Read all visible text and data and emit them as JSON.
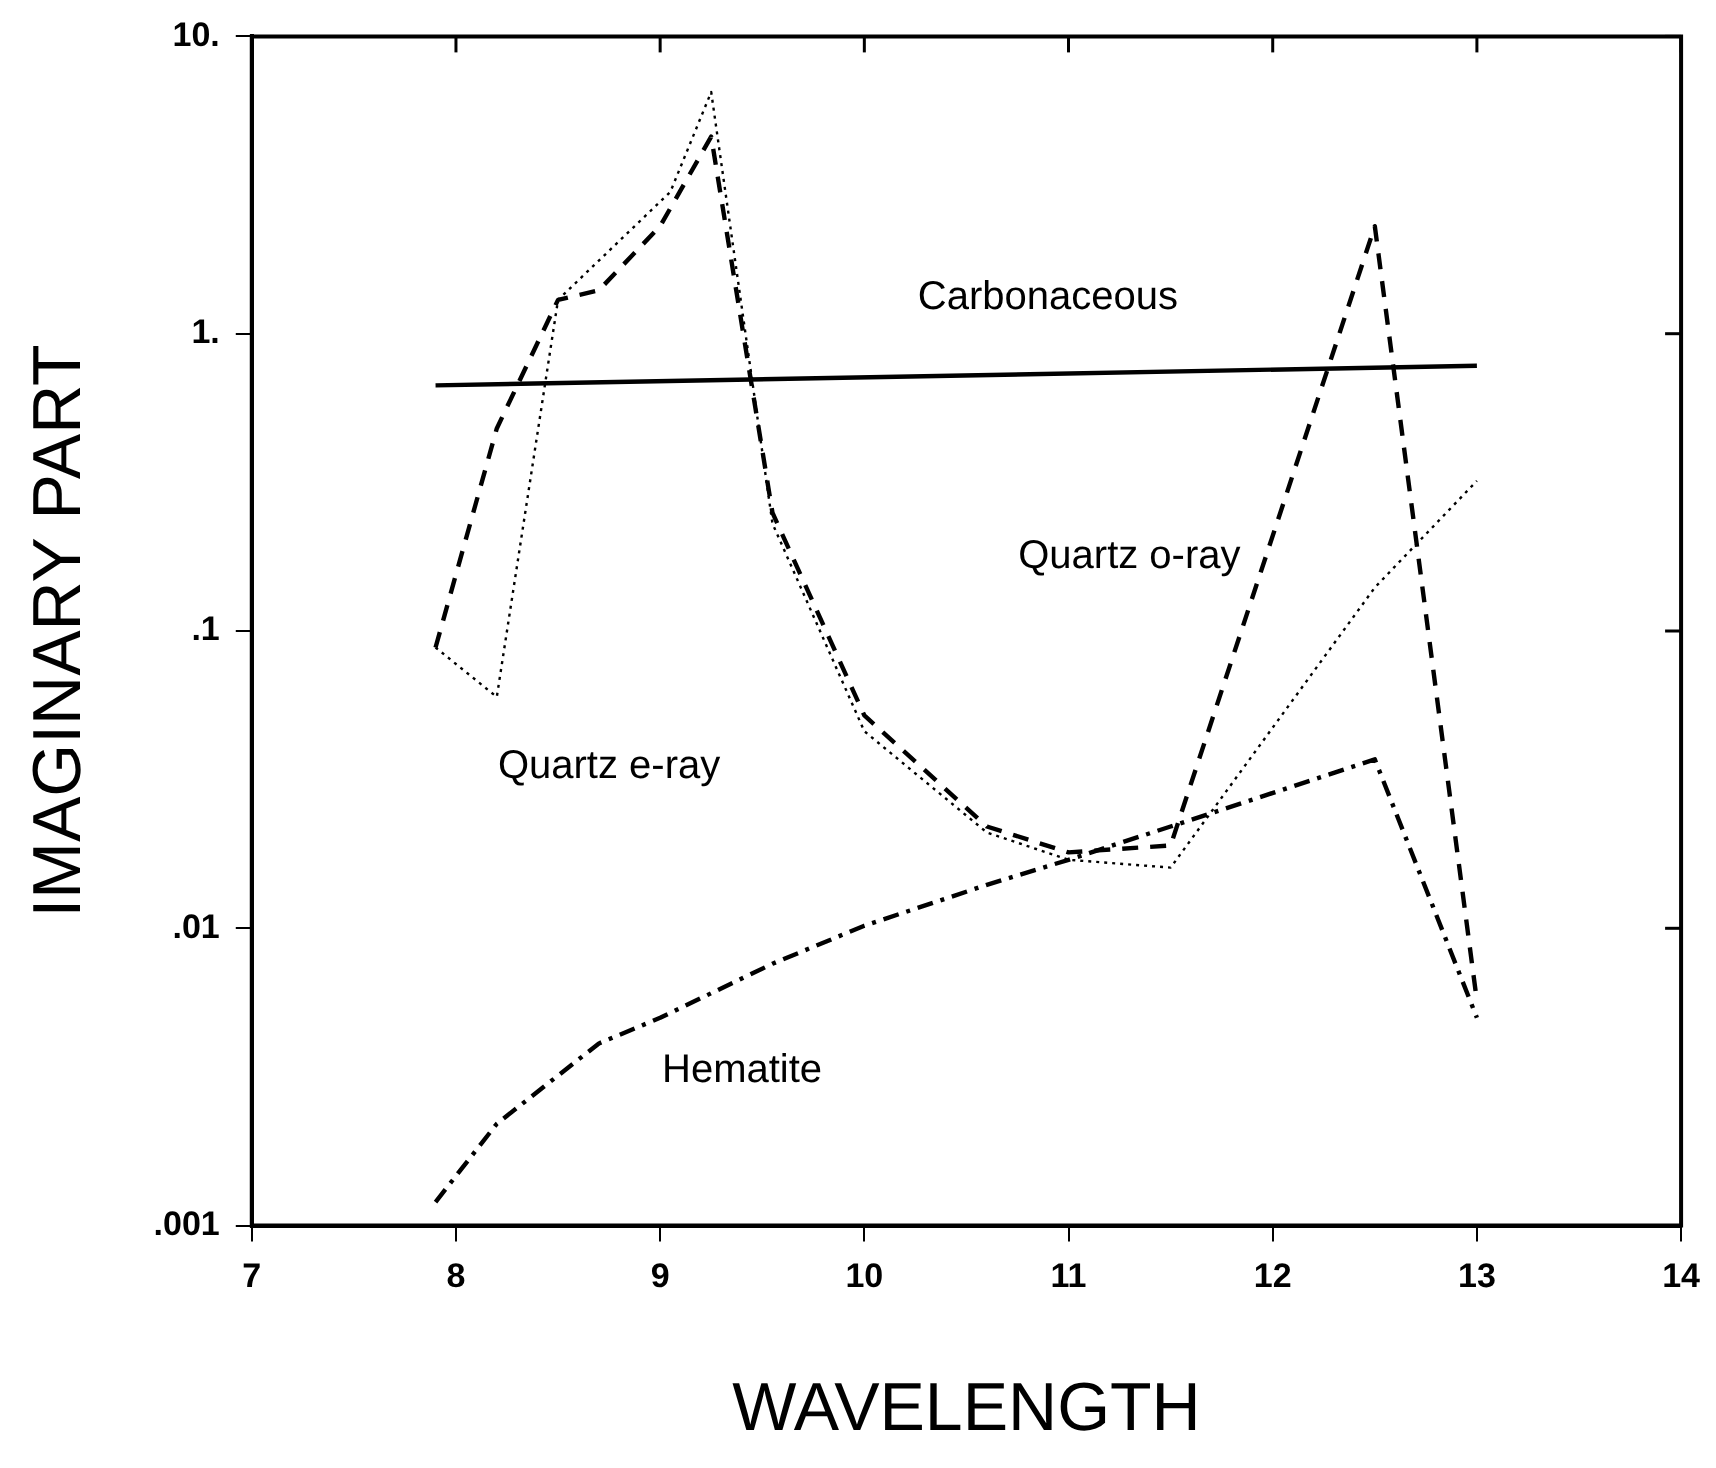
{
  "chart_data": {
    "type": "line",
    "xlabel": "WAVELENGTH",
    "ylabel": "IMAGINARY PART",
    "log": "y",
    "grid": false,
    "legend": false,
    "marker": "none",
    "xlim": [
      7,
      14
    ],
    "xticks": [
      7,
      8,
      9,
      10,
      11,
      12,
      13,
      14
    ],
    "ylim": [
      0.001,
      10
    ],
    "yticks": [
      {
        "value": 0.001,
        "label": ".001"
      },
      {
        "value": 0.01,
        "label": ".01"
      },
      {
        "value": 0.1,
        "label": ".1"
      },
      {
        "value": 1,
        "label": "1."
      },
      {
        "value": 10,
        "label": "10."
      }
    ],
    "series": [
      {
        "name": "Carbonaceous",
        "color": "#000000",
        "line_style": "solid",
        "x": [
          7.9,
          13.0
        ],
        "values": [
          0.67,
          0.78
        ]
      },
      {
        "name": "Quartz e-ray",
        "color": "#000000",
        "line_style": "dotted",
        "x": [
          7.9,
          8.2,
          8.5,
          9.05,
          9.25,
          9.55,
          10.0,
          10.6,
          11.0,
          11.5,
          12.5,
          13.0
        ],
        "values": [
          0.088,
          0.06,
          1.3,
          3.0,
          6.5,
          0.23,
          0.046,
          0.021,
          0.017,
          0.016,
          0.14,
          0.32
        ]
      },
      {
        "name": "Quartz o-ray",
        "color": "#000000",
        "line_style": "dashed",
        "x": [
          7.9,
          8.2,
          8.5,
          8.7,
          9.0,
          9.25,
          9.55,
          10.0,
          10.6,
          11.0,
          11.5,
          12.5,
          13.0
        ],
        "values": [
          0.088,
          0.48,
          1.3,
          1.4,
          2.3,
          4.6,
          0.25,
          0.052,
          0.022,
          0.018,
          0.019,
          2.3,
          0.0057
        ]
      },
      {
        "name": "Hematite",
        "color": "#000000",
        "line_style": "dashdot",
        "x": [
          7.9,
          8.2,
          8.7,
          9.0,
          9.55,
          10.0,
          10.6,
          11.0,
          11.5,
          12.5,
          13.0
        ],
        "values": [
          0.0012,
          0.0022,
          0.0041,
          0.005,
          0.0076,
          0.0102,
          0.014,
          0.017,
          0.022,
          0.037,
          0.005
        ]
      }
    ]
  }
}
